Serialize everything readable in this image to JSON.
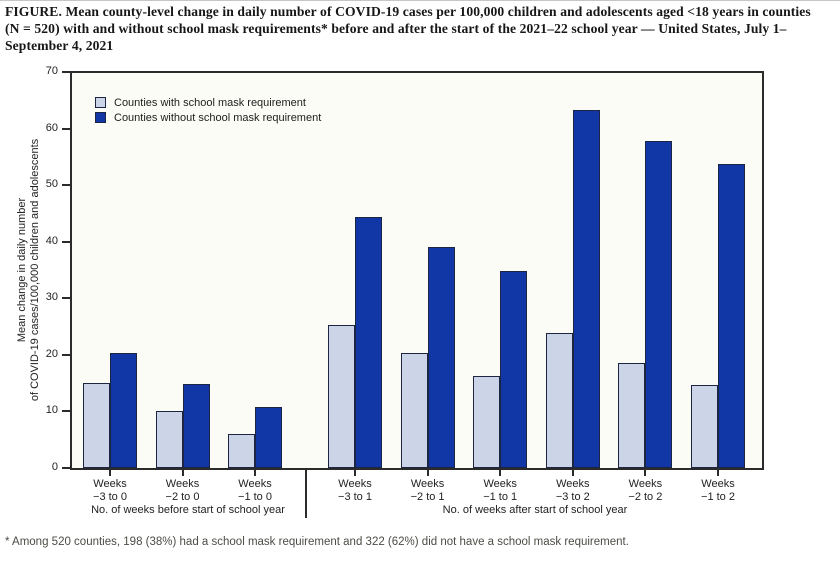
{
  "figure": {
    "title_lines": [
      "FIGURE. Mean county-level change in daily number of COVID-19 cases per 100,000 children and adolescents aged <18 years in counties",
      "(N = 520) with and without school mask requirements* before and after the start of the 2021–22 school year — United States, July 1–",
      "September 4, 2021"
    ],
    "footnote": "* Among 520 counties, 198 (38%) had a school mask requirement and 322 (62%) did not have a school mask requirement."
  },
  "chart_data": {
    "type": "bar",
    "title": "FIGURE. Mean county-level change in daily number of COVID-19 cases per 100,000 children and adolescents aged <18 years in counties (N = 520) with and without school mask requirements* before and after the start of the 2021–22 school year — United States, July 1–September 4, 2021",
    "ylabel_lines": [
      "Mean change in daily number",
      "of COVID-19 cases/100,000 children and adolescents"
    ],
    "ylim": [
      0,
      70
    ],
    "yticks": [
      0,
      10,
      20,
      30,
      40,
      50,
      60,
      70
    ],
    "grid": false,
    "legend_position": "top-left",
    "categories": [
      {
        "line1": "Weeks",
        "line2": "−3 to 0",
        "section": "before"
      },
      {
        "line1": "Weeks",
        "line2": "−2 to 0",
        "section": "before"
      },
      {
        "line1": "Weeks",
        "line2": "−1 to 0",
        "section": "before"
      },
      {
        "line1": "Weeks",
        "line2": "−3 to 1",
        "section": "after"
      },
      {
        "line1": "Weeks",
        "line2": "−2 to 1",
        "section": "after"
      },
      {
        "line1": "Weeks",
        "line2": "−1 to 1",
        "section": "after"
      },
      {
        "line1": "Weeks",
        "line2": "−3 to 2",
        "section": "after"
      },
      {
        "line1": "Weeks",
        "line2": "−2 to 2",
        "section": "after"
      },
      {
        "line1": "Weeks",
        "line2": "−1 to 2",
        "section": "after"
      }
    ],
    "section_labels": [
      "No. of weeks before start of school year",
      "No. of weeks after start of school year"
    ],
    "section_counts": [
      3,
      6
    ],
    "series": [
      {
        "name": "Counties with school mask requirement",
        "color": "#ccd4e8",
        "values": [
          15.0,
          10.0,
          6.0,
          25.3,
          20.3,
          16.3,
          23.8,
          18.6,
          14.6
        ]
      },
      {
        "name": "Counties without school mask requirement",
        "color": "#1137a6",
        "values": [
          20.3,
          14.9,
          10.7,
          44.4,
          39.0,
          34.9,
          63.3,
          57.8,
          53.7
        ]
      }
    ],
    "colors": {
      "axis": "#2b2b2b",
      "plot_background": "#fcfcf6",
      "bar_outline": "#1c2542"
    }
  }
}
